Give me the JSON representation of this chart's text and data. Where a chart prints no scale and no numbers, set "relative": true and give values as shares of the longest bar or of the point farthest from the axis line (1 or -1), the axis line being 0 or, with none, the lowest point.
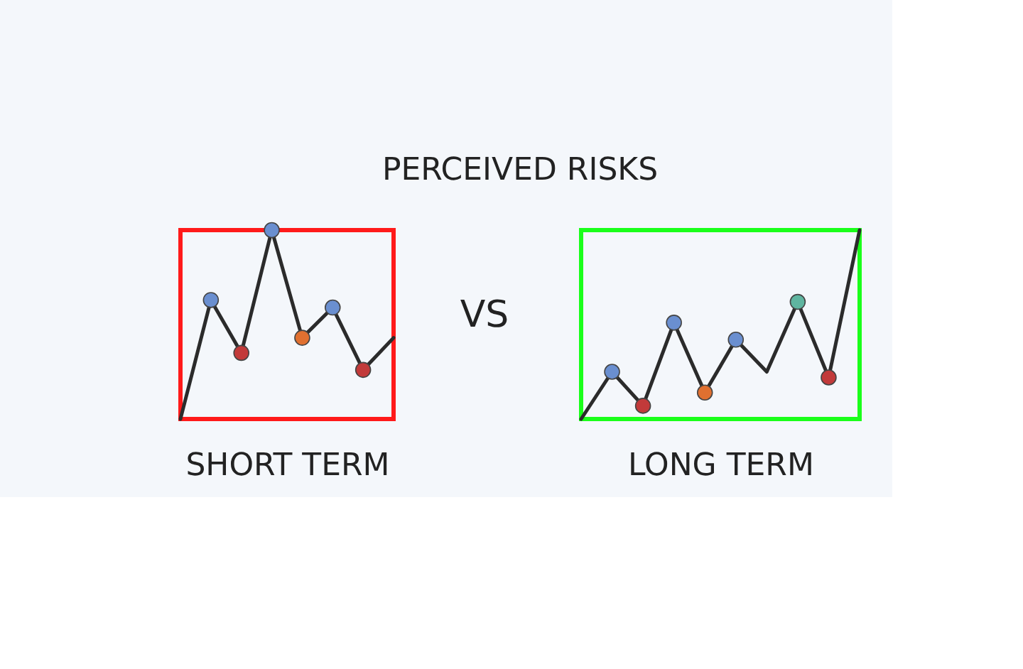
{
  "chart_data": [
    {
      "type": "line",
      "relative": true,
      "xlabel": "SHORT TERM",
      "marker": "circle",
      "categories": [
        null,
        null,
        null,
        null,
        null,
        null,
        null,
        null
      ],
      "series": [
        {
          "color": "#2b2b2b",
          "values": [
            0,
            0.63,
            0.35,
            1,
            0.43,
            0.59,
            0.26,
            0.43
          ],
          "colors": [
            null,
            "#6a8fd0",
            "#c23a3a",
            "#6a8fd0",
            "#e07030",
            "#6a8fd0",
            "#c23a3a",
            null
          ]
        }
      ]
    },
    {
      "type": "other",
      "title": "PERCEIVED RISKS",
      "annotations": [
        "VS"
      ]
    },
    {
      "type": "line",
      "relative": true,
      "xlabel": "LONG TERM",
      "marker": "circle",
      "categories": [
        null,
        null,
        null,
        null,
        null,
        null,
        null,
        null,
        null,
        null
      ],
      "series": [
        {
          "color": "#2b2b2b",
          "values": [
            0,
            0.25,
            0.07,
            0.51,
            0.14,
            0.42,
            0.25,
            0.62,
            0.22,
            1
          ],
          "colors": [
            null,
            "#6a8fd0",
            "#c23a3a",
            "#6a8fd0",
            "#e07030",
            "#6a8fd0",
            null,
            "#5fb5a0",
            "#c23a3a",
            null
          ]
        }
      ]
    }
  ]
}
